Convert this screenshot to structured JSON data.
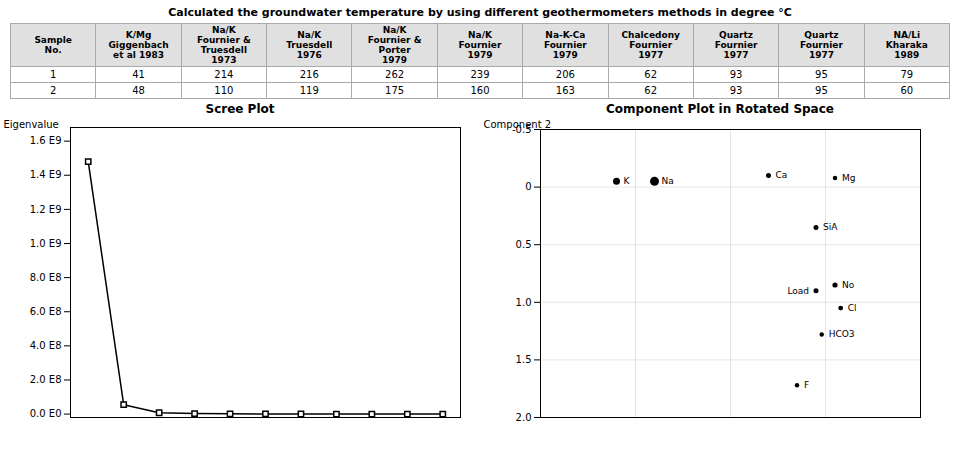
{
  "chart_data": [
    {
      "type": "table",
      "title": "Calculated the groundwater temperature by using different geothermometers methods in degree °C",
      "columns": [
        "Sample\nNo.",
        "K/Mg\nGiggenbach\net al 1983",
        "Na/K\nFournier &\nTruesdell\n1973",
        "Na/K\nTruesdell\n1976",
        "Na/K\nFournier &\nPorter\n1979",
        "Na/K\nFournier\n1979",
        "Na-K-Ca\nFournier\n1979",
        "Chalcedony\nFournier\n1977",
        "Quartz\nFournier\n1977",
        "Quartz\nFournier\n1977",
        "NA/Li\nKharaka\n1989"
      ],
      "rows": [
        [
          "1",
          "41",
          "214",
          "216",
          "262",
          "239",
          "206",
          "62",
          "93",
          "95",
          "79"
        ],
        [
          "2",
          "48",
          "110",
          "119",
          "175",
          "160",
          "163",
          "62",
          "93",
          "95",
          "60"
        ]
      ]
    },
    {
      "type": "line",
      "title": "Scree Plot",
      "ylabel": "Eigenvalue",
      "x": [
        1,
        2,
        3,
        4,
        5,
        6,
        7,
        8,
        9,
        10,
        11
      ],
      "values": [
        1480000000,
        55000000,
        8000000,
        3000000,
        1500000,
        800000,
        400000,
        200000,
        100000,
        50000,
        20000
      ],
      "color": "#000000",
      "marker": "square",
      "line_style": "solid",
      "xlim": [
        0.5,
        11.5
      ],
      "ylim": [
        -20000000,
        1680000000
      ],
      "yticks": [
        {
          "value": 0,
          "label": "0.0 E0"
        },
        {
          "value": 200000000,
          "label": "2.0 E8"
        },
        {
          "value": 400000000,
          "label": "4.0 E8"
        },
        {
          "value": 600000000,
          "label": "6.0 E8"
        },
        {
          "value": 800000000,
          "label": "8.0 E8"
        },
        {
          "value": 1000000000,
          "label": "1.0 E9"
        },
        {
          "value": 1200000000,
          "label": "1.2 E9"
        },
        {
          "value": 1400000000,
          "label": "1.4 E9"
        },
        {
          "value": 1600000000,
          "label": "1.6 E9"
        }
      ],
      "tick_labels": "y"
    },
    {
      "type": "scatter",
      "title": "Component Plot in Rotated Space",
      "ylabel": "Component 2",
      "x": [
        -0.6,
        -0.4,
        0.2,
        0.55,
        0.45,
        0.55,
        0.45,
        0.58,
        0.48,
        0.35
      ],
      "values": [
        -0.05,
        -0.05,
        -0.1,
        -0.08,
        0.35,
        0.85,
        0.9,
        1.05,
        1.28,
        1.72
      ],
      "z": [
        0.3,
        0.5,
        0.1,
        0.05,
        0.1,
        0.12,
        0.1,
        0.08,
        0.05,
        0.05
      ],
      "labels": [
        "K",
        "Na",
        "Ca",
        "Mg",
        "SiA",
        "No",
        "Load",
        "Cl",
        "HCO3",
        "F"
      ],
      "color": "#000000",
      "xlim": [
        -1,
        1
      ],
      "xticks": [
        -1,
        -0.5,
        0,
        0.5,
        1
      ],
      "ylim": [
        2,
        -0.5
      ],
      "yticks": [
        -0.5,
        0,
        0.5,
        {
          "value": 1,
          "label": "1.0"
        },
        1.5,
        {
          "value": 2,
          "label": "2.0"
        }
      ],
      "zlim": [
        0,
        1
      ],
      "grid": true,
      "tick_labels": "y"
    }
  ]
}
